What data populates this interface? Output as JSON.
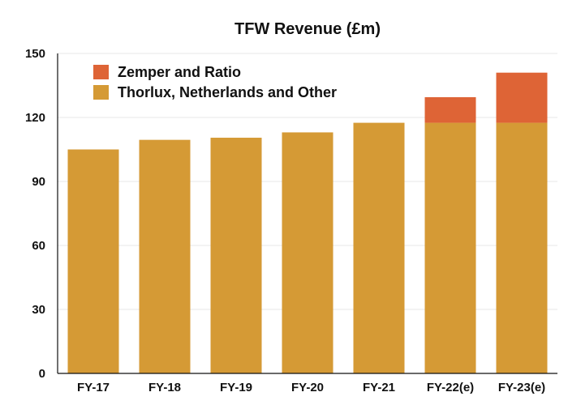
{
  "chart_data": {
    "type": "bar",
    "title": "TFW Revenue (£m)",
    "xlabel": "",
    "ylabel": "",
    "categories": [
      "FY-17",
      "FY-18",
      "FY-19",
      "FY-20",
      "FY-21",
      "FY-22(e)",
      "FY-23(e)"
    ],
    "series": [
      {
        "name": "Thorlux, Netherlands and Other",
        "values": [
          105,
          109.5,
          110.5,
          113,
          117.5,
          117.5,
          117.5
        ],
        "color": "#d59a35"
      },
      {
        "name": "Zemper and Ratio",
        "values": [
          0,
          0,
          0,
          0,
          0,
          12,
          23.5
        ],
        "color": "#de6436"
      }
    ],
    "stacked": true,
    "ylim": [
      0,
      150
    ],
    "yticks": [
      0,
      30,
      60,
      90,
      120,
      150
    ],
    "grid": true,
    "legend_placement": "top-left"
  }
}
